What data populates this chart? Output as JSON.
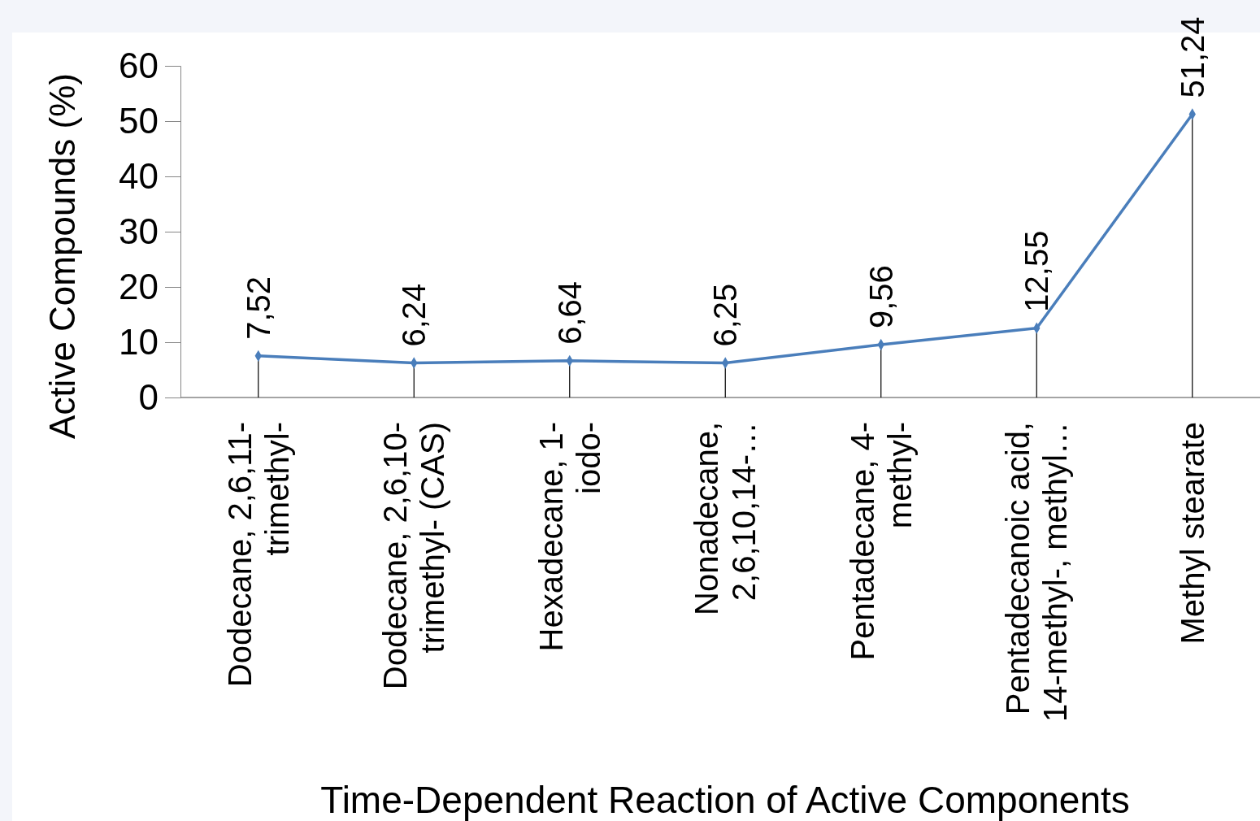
{
  "chart_data": {
    "type": "line",
    "xlabel": "Time-Dependent Reaction of Active Components",
    "ylabel": "Active Compounds (%)",
    "categories": [
      "Dodecane, 2,6,11-trimethyl-",
      "Dodecane, 2,6,10-trimethyl- (CAS)",
      "Hexadecane, 1-iodo-",
      "Nonadecane, 2,6,10,14-…",
      "Pentadecane, 4-methyl-",
      "Pentadecanoic acid, 14-methyl-, methyl…",
      "Methyl stearate"
    ],
    "series": [
      {
        "color": "#4a7ebb",
        "values": [
          7.52,
          6.24,
          6.64,
          6.25,
          9.56,
          12.55,
          51.24
        ],
        "value_labels": [
          "7,52",
          "6,24",
          "6,64",
          "6,25",
          "9,56",
          "12,55",
          "51,24"
        ]
      }
    ],
    "ylim": [
      0,
      60
    ],
    "yticks": [
      0,
      10,
      20,
      30,
      40,
      50,
      60
    ],
    "marker": "diamond",
    "line_style": "solid"
  }
}
